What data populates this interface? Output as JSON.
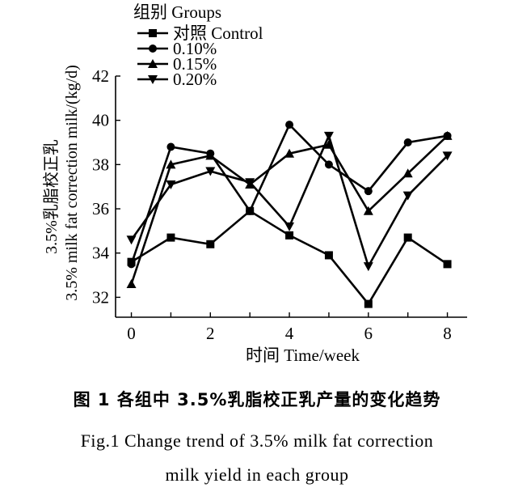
{
  "chart_data": {
    "type": "line",
    "x": [
      0,
      1,
      2,
      3,
      4,
      5,
      6,
      7,
      8
    ],
    "series": [
      {
        "name": "对照  Control",
        "marker": "square",
        "values": [
          33.6,
          34.7,
          34.4,
          35.9,
          34.8,
          33.9,
          31.7,
          34.7,
          33.5
        ]
      },
      {
        "name": "0.10%",
        "marker": "circle",
        "values": [
          33.5,
          38.8,
          38.5,
          35.9,
          39.8,
          38.0,
          36.8,
          39.0,
          39.3
        ]
      },
      {
        "name": "0.15%",
        "marker": "triangle",
        "values": [
          32.6,
          38.0,
          38.4,
          37.1,
          38.5,
          38.9,
          35.9,
          37.6,
          39.3
        ]
      },
      {
        "name": "0.20%",
        "marker": "tri-down",
        "values": [
          34.6,
          37.1,
          37.7,
          37.2,
          35.2,
          39.3,
          33.4,
          36.6,
          38.4
        ]
      }
    ],
    "xlabel": "时间  Time/week",
    "ylabel_lines": [
      "3.5%乳脂校正乳",
      "3.5%  milk fat correction milk/(kg/d)"
    ],
    "xlim": [
      -0.4,
      8.5
    ],
    "ylim": [
      31.1,
      42
    ],
    "xticks": [
      "0",
      "2",
      "4",
      "6",
      "8"
    ],
    "yticks": [
      "32",
      "34",
      "36",
      "38",
      "40",
      "42"
    ],
    "legend_title": "组别 Groups",
    "legend_position": "top-left",
    "grid": false
  },
  "caption": {
    "zh": "图 1    各组中 3.5%乳脂校正乳产量的变化趋势",
    "en_line1": "Fig.1    Change trend of 3.5% milk fat correction",
    "en_line2": "milk yield in each group"
  }
}
